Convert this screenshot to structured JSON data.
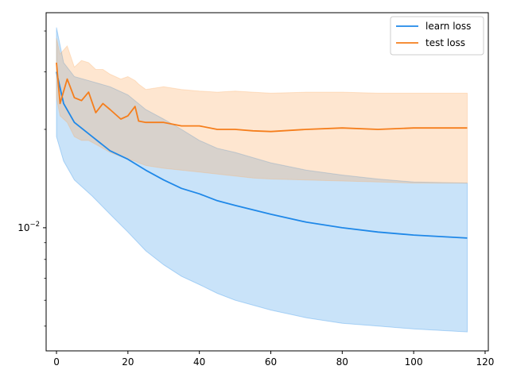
{
  "chart_data": {
    "type": "line",
    "title": "",
    "xlabel": "",
    "ylabel": "",
    "xlim": [
      -2.9,
      120.9
    ],
    "ylim": [
      0.0042,
      0.0455
    ],
    "yscale": "log",
    "grid": false,
    "legend_position": "top-right",
    "x_ticks": [
      0,
      20,
      40,
      60,
      80,
      100,
      120
    ],
    "x_tick_labels": [
      "0",
      "20",
      "40",
      "60",
      "80",
      "100",
      "120"
    ],
    "y_ticks": [
      0.01
    ],
    "y_tick_labels": [
      "10^-2"
    ],
    "y_tick_label_display": {
      "base": "10",
      "exponent": "−2"
    },
    "series": [
      {
        "name": "learn loss",
        "color": "#1f88e8",
        "band_color": "#1f88e8",
        "x": [
          0,
          2,
          5,
          10,
          15,
          20,
          25,
          30,
          35,
          40,
          45,
          50,
          60,
          70,
          80,
          90,
          100,
          115
        ],
        "y": [
          0.03,
          0.024,
          0.021,
          0.019,
          0.0172,
          0.0162,
          0.015,
          0.014,
          0.0132,
          0.0127,
          0.0121,
          0.0117,
          0.011,
          0.0104,
          0.01,
          0.0097,
          0.0095,
          0.0093
        ],
        "lower": [
          0.019,
          0.016,
          0.014,
          0.0125,
          0.011,
          0.0097,
          0.0085,
          0.0077,
          0.0071,
          0.0067,
          0.0063,
          0.006,
          0.0056,
          0.0053,
          0.0051,
          0.005,
          0.0049,
          0.0048
        ],
        "upper": [
          0.041,
          0.032,
          0.029,
          0.028,
          0.027,
          0.0255,
          0.023,
          0.0215,
          0.02,
          0.0185,
          0.0175,
          0.017,
          0.0158,
          0.015,
          0.0145,
          0.0141,
          0.0138,
          0.0137
        ]
      },
      {
        "name": "test loss",
        "color": "#f57e1c",
        "band_color": "#fdab62",
        "x": [
          0,
          1,
          3,
          5,
          7,
          9,
          11,
          13,
          15,
          18,
          20,
          22,
          23,
          25,
          30,
          35,
          40,
          45,
          50,
          55,
          60,
          70,
          80,
          90,
          100,
          115
        ],
        "y": [
          0.032,
          0.024,
          0.0285,
          0.025,
          0.0245,
          0.026,
          0.0225,
          0.024,
          0.023,
          0.0215,
          0.022,
          0.0235,
          0.0212,
          0.021,
          0.021,
          0.0205,
          0.0205,
          0.02,
          0.02,
          0.0198,
          0.0197,
          0.02,
          0.0202,
          0.02,
          0.0202,
          0.0202
        ],
        "lower": [
          0.025,
          0.022,
          0.021,
          0.019,
          0.0185,
          0.0185,
          0.018,
          0.0175,
          0.017,
          0.0165,
          0.0162,
          0.016,
          0.0158,
          0.0155,
          0.0152,
          0.015,
          0.0148,
          0.0146,
          0.0144,
          0.0142,
          0.0141,
          0.014,
          0.0139,
          0.0138,
          0.0137,
          0.0137
        ],
        "upper": [
          0.038,
          0.034,
          0.036,
          0.031,
          0.0325,
          0.032,
          0.0305,
          0.0305,
          0.0295,
          0.0285,
          0.029,
          0.0282,
          0.0275,
          0.0265,
          0.027,
          0.0265,
          0.0262,
          0.026,
          0.0262,
          0.026,
          0.0258,
          0.026,
          0.026,
          0.0258,
          0.0258,
          0.0258
        ]
      }
    ]
  }
}
